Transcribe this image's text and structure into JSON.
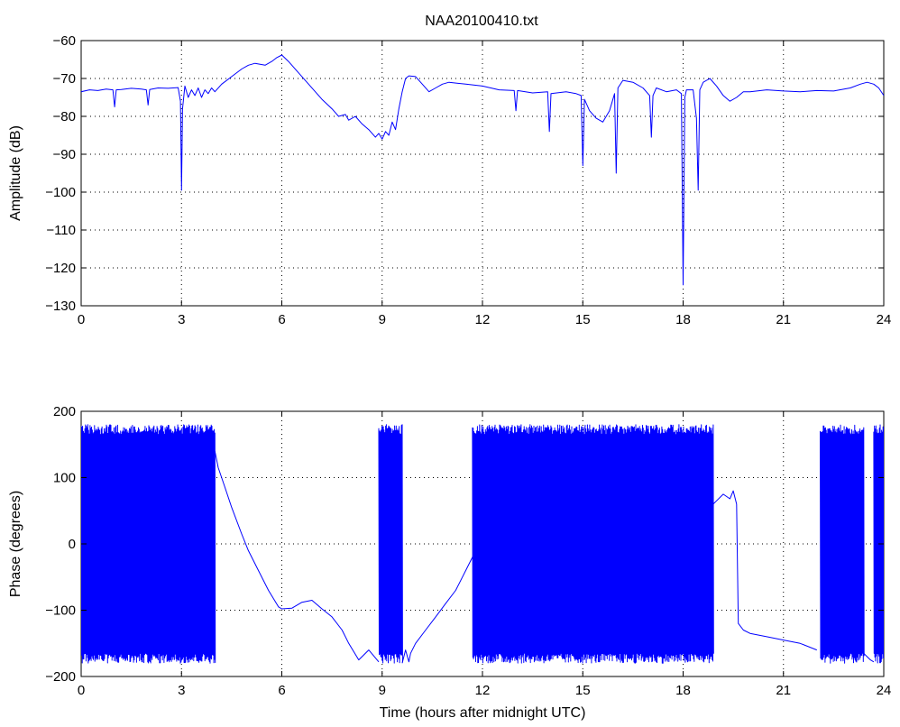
{
  "figure": {
    "title": "NAA20100410.txt"
  },
  "chart_data": [
    {
      "type": "line",
      "title": "NAA20100410.txt",
      "xlabel": "",
      "ylabel": "Amplitude (dB)",
      "xlim": [
        0,
        24
      ],
      "ylim": [
        -130,
        -60
      ],
      "xticks": [
        0,
        3,
        6,
        9,
        12,
        15,
        18,
        21,
        24
      ],
      "yticks": [
        -60,
        -70,
        -80,
        -90,
        -100,
        -110,
        -120,
        -130
      ],
      "grid": true,
      "line_color": "#0000ff",
      "series": [
        {
          "x": [
            0,
            0.25,
            0.5,
            0.75,
            0.95,
            1.0,
            1.05,
            1.2,
            1.5,
            1.8,
            1.95,
            2.0,
            2.05,
            2.3,
            2.6,
            2.9,
            2.97,
            3.0,
            3.03,
            3.1,
            3.2,
            3.3,
            3.4,
            3.5,
            3.6,
            3.7,
            3.8,
            3.9,
            4.0,
            4.2,
            4.5,
            4.8,
            5.0,
            5.2,
            5.5,
            5.7,
            5.85,
            6.0,
            6.2,
            6.5,
            6.8,
            7.0,
            7.2,
            7.5,
            7.7,
            7.9,
            8.0,
            8.2,
            8.4,
            8.6,
            8.8,
            8.9,
            9.0,
            9.1,
            9.2,
            9.3,
            9.4,
            9.5,
            9.6,
            9.7,
            9.8,
            10.0,
            10.2,
            10.4,
            10.6,
            10.8,
            11.0,
            11.5,
            12.0,
            12.5,
            12.95,
            13.0,
            13.05,
            13.5,
            13.95,
            14.0,
            14.05,
            14.5,
            14.8,
            14.95,
            15.0,
            15.05,
            15.2,
            15.4,
            15.6,
            15.8,
            15.95,
            16.0,
            16.05,
            16.2,
            16.5,
            16.8,
            17.0,
            17.05,
            17.1,
            17.2,
            17.5,
            17.8,
            17.95,
            18.0,
            18.05,
            18.1,
            18.3,
            18.4,
            18.45,
            18.5,
            18.6,
            18.8,
            19.0,
            19.2,
            19.4,
            19.6,
            19.8,
            20.0,
            20.5,
            21.0,
            21.5,
            22.0,
            22.5,
            23.0,
            23.3,
            23.5,
            23.7,
            23.85,
            24.0
          ],
          "values": [
            -73.5,
            -73.0,
            -73.2,
            -72.8,
            -73.0,
            -77.5,
            -73.0,
            -72.9,
            -72.6,
            -72.8,
            -73.0,
            -77.0,
            -72.9,
            -72.5,
            -72.6,
            -72.4,
            -76.0,
            -99.5,
            -78.0,
            -72.0,
            -75.0,
            -73.0,
            -74.5,
            -72.5,
            -75.0,
            -73.0,
            -74.0,
            -72.5,
            -73.5,
            -71.5,
            -69.5,
            -67.5,
            -66.5,
            -66.0,
            -66.5,
            -65.5,
            -64.5,
            -63.8,
            -65.5,
            -68.5,
            -71.5,
            -73.5,
            -75.5,
            -78.0,
            -80.0,
            -79.5,
            -81.0,
            -80.0,
            -82.0,
            -83.5,
            -85.5,
            -84.5,
            -86.0,
            -84.0,
            -85.0,
            -81.5,
            -83.5,
            -78.0,
            -73.5,
            -70.0,
            -69.3,
            -69.5,
            -71.5,
            -73.5,
            -72.5,
            -71.5,
            -71.0,
            -71.5,
            -72.0,
            -73.0,
            -73.2,
            -78.5,
            -73.2,
            -73.8,
            -73.5,
            -84.0,
            -74.0,
            -73.5,
            -74.0,
            -74.5,
            -93.0,
            -75.5,
            -78.5,
            -80.5,
            -81.5,
            -78.5,
            -74.0,
            -95.0,
            -72.5,
            -70.5,
            -71.0,
            -72.5,
            -74.5,
            -85.5,
            -74.5,
            -72.5,
            -73.5,
            -73.0,
            -74.0,
            -124.5,
            -75.0,
            -73.0,
            -73.0,
            -80.5,
            -99.5,
            -73.0,
            -71.0,
            -70.0,
            -72.0,
            -74.5,
            -76.0,
            -75.0,
            -73.5,
            -73.5,
            -73.0,
            -73.3,
            -73.5,
            -73.2,
            -73.3,
            -72.5,
            -71.5,
            -71.0,
            -71.5,
            -72.5,
            -74.5
          ]
        }
      ]
    },
    {
      "type": "line",
      "title": "",
      "xlabel": "Time (hours after midnight UTC)",
      "ylabel": "Phase (degrees)",
      "xlim": [
        0,
        24
      ],
      "ylim": [
        -200,
        200
      ],
      "xticks": [
        0,
        3,
        6,
        9,
        12,
        15,
        18,
        21,
        24
      ],
      "yticks": [
        200,
        100,
        0,
        -100,
        -200
      ],
      "grid": true,
      "line_color": "#0000ff",
      "wrap_regions": [
        {
          "x": [
            0.0,
            4.0
          ],
          "values": [
            -180,
            180
          ]
        },
        {
          "x": [
            8.9,
            9.6
          ],
          "values": [
            -180,
            180
          ]
        },
        {
          "x": [
            11.7,
            12.0
          ],
          "values": [
            -180,
            180
          ]
        },
        {
          "x": [
            12.0,
            18.9
          ],
          "values": [
            -180,
            180
          ]
        },
        {
          "x": [
            22.1,
            23.4
          ],
          "values": [
            -180,
            180
          ]
        },
        {
          "x": [
            23.7,
            24.0
          ],
          "values": [
            -180,
            180
          ]
        }
      ],
      "series": [
        {
          "x": [
            4.0,
            4.1,
            4.3,
            4.5,
            4.8,
            5.0,
            5.3,
            5.6,
            5.9,
            6.0,
            6.3,
            6.6,
            6.9,
            7.2,
            7.5,
            7.8,
            8.0,
            8.3,
            8.6,
            8.9
          ],
          "values": [
            140,
            115,
            85,
            55,
            15,
            -10,
            -40,
            -70,
            -95,
            -98,
            -97,
            -88,
            -85,
            -98,
            -110,
            -130,
            -150,
            -175,
            -160,
            -178
          ]
        },
        {
          "x": [
            9.6,
            9.7,
            9.8,
            9.85,
            10.0,
            10.3,
            10.6,
            10.9,
            11.2,
            11.5,
            11.8,
            12.0
          ],
          "values": [
            -180,
            -160,
            -178,
            -165,
            -150,
            -130,
            -110,
            -90,
            -70,
            -40,
            -10,
            10
          ]
        },
        {
          "x": [
            18.9,
            19.0,
            19.2,
            19.4,
            19.5,
            19.6,
            19.65,
            19.8,
            20.0,
            20.5,
            21.0,
            21.5,
            22.0
          ],
          "values": [
            60,
            65,
            75,
            68,
            80,
            60,
            -120,
            -130,
            -135,
            -140,
            -145,
            -150,
            -160
          ]
        },
        {
          "x": [
            23.4,
            23.5,
            23.6,
            23.7
          ],
          "values": [
            -165,
            -170,
            -175,
            -178
          ]
        }
      ]
    }
  ]
}
